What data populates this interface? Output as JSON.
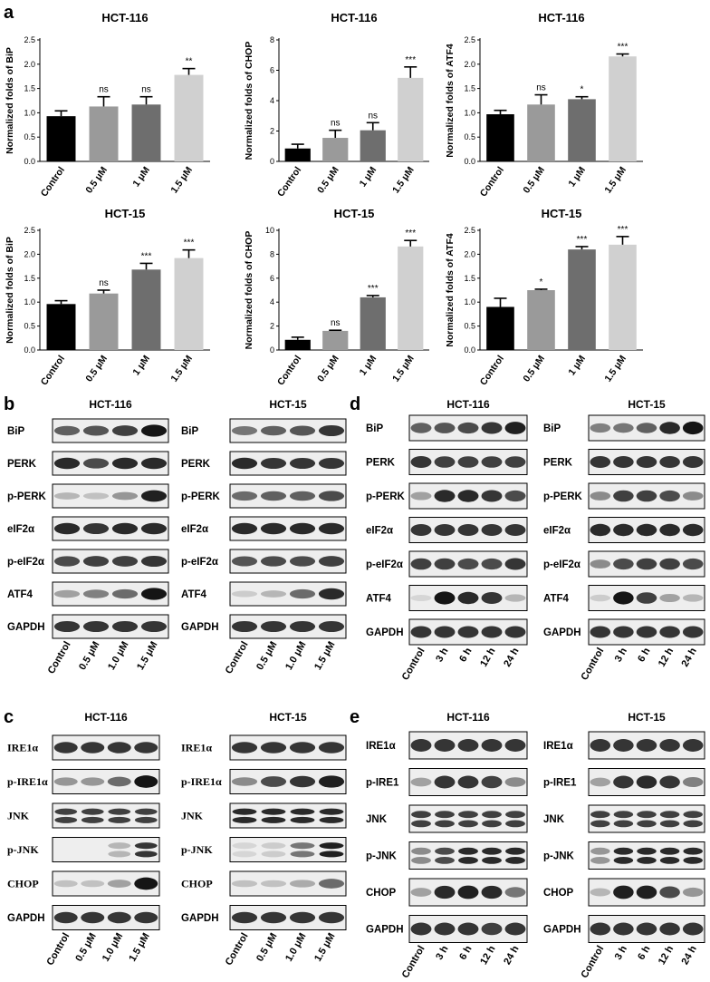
{
  "panel_labels": {
    "a": "a",
    "b": "b",
    "c": "c",
    "d": "d",
    "e": "e"
  },
  "bar_colors": [
    "#000000",
    "#9a9a9a",
    "#6e6e6e",
    "#d0d0d0"
  ],
  "chart_data": [
    {
      "type": "bar",
      "title": "HCT-116",
      "ylabel": "Normalized folds of BiP",
      "categories": [
        "Control",
        "0.5 μM",
        "1 μM",
        "1.5 μM"
      ],
      "values": [
        0.93,
        1.13,
        1.17,
        1.78
      ],
      "errors": [
        0.11,
        0.2,
        0.16,
        0.13
      ],
      "significance": [
        "",
        "ns",
        "ns",
        "**"
      ],
      "ylim": [
        0,
        2.5
      ],
      "yticks": [
        "0.0",
        "0.5",
        "1.0",
        "1.5",
        "2.0",
        "2.5"
      ]
    },
    {
      "type": "bar",
      "title": "HCT-116",
      "ylabel": "Normalized folds of CHOP",
      "categories": [
        "Control",
        "0.5 μM",
        "1 μM",
        "1.5 μM"
      ],
      "values": [
        0.85,
        1.55,
        2.05,
        5.5
      ],
      "errors": [
        0.28,
        0.5,
        0.5,
        0.72
      ],
      "significance": [
        "",
        "ns",
        "ns",
        "***"
      ],
      "ylim": [
        0,
        8
      ],
      "yticks": [
        "0",
        "2",
        "4",
        "6",
        "8"
      ]
    },
    {
      "type": "bar",
      "title": "HCT-116",
      "ylabel": "Normalized folds of ATF4",
      "categories": [
        "Control",
        "0.5 μM",
        "1 μM",
        "1.5 μM"
      ],
      "values": [
        0.97,
        1.17,
        1.28,
        2.16
      ],
      "errors": [
        0.08,
        0.2,
        0.05,
        0.05
      ],
      "significance": [
        "",
        "ns",
        "*",
        "***"
      ],
      "ylim": [
        0,
        2.5
      ],
      "yticks": [
        "0.0",
        "0.5",
        "1.0",
        "1.5",
        "2.0",
        "2.5"
      ]
    },
    {
      "type": "bar",
      "title": "HCT-15",
      "ylabel": "Normalized folds of BiP",
      "categories": [
        "Control",
        "0.5 μM",
        "1 μM",
        "1.5 μM"
      ],
      "values": [
        0.96,
        1.18,
        1.68,
        1.92
      ],
      "errors": [
        0.07,
        0.07,
        0.13,
        0.17
      ],
      "significance": [
        "",
        "ns",
        "***",
        "***"
      ],
      "ylim": [
        0,
        2.5
      ],
      "yticks": [
        "0.0",
        "0.5",
        "1.0",
        "1.5",
        "2.0",
        "2.5"
      ]
    },
    {
      "type": "bar",
      "title": "HCT-15",
      "ylabel": "Normalized folds of CHOP",
      "categories": [
        "Control",
        "0.5 μM",
        "1 μM",
        "1.5 μM"
      ],
      "values": [
        0.85,
        1.6,
        4.4,
        8.65
      ],
      "errors": [
        0.22,
        0.05,
        0.15,
        0.5
      ],
      "significance": [
        "",
        "ns",
        "***",
        "***"
      ],
      "ylim": [
        0,
        10
      ],
      "yticks": [
        "0",
        "2",
        "4",
        "6",
        "8",
        "10"
      ]
    },
    {
      "type": "bar",
      "title": "HCT-15",
      "ylabel": "Normalized folds of ATF4",
      "categories": [
        "Control",
        "0.5 μM",
        "1 μM",
        "1.5 μM"
      ],
      "values": [
        0.9,
        1.25,
        2.1,
        2.2
      ],
      "errors": [
        0.18,
        0.02,
        0.06,
        0.17
      ],
      "significance": [
        "",
        "*",
        "***",
        "***"
      ],
      "ylim": [
        0,
        2.5
      ],
      "yticks": [
        "0.0",
        "0.5",
        "1.0",
        "1.5",
        "2.0",
        "2.5"
      ]
    }
  ],
  "blots": [
    {
      "panel": "b",
      "title": "HCT-116",
      "rows": [
        "BiP",
        "PERK",
        "p-PERK",
        "eIF2α",
        "p-eIF2α",
        "ATF4",
        "GAPDH"
      ],
      "lanes": [
        "Control",
        "0.5 μM",
        "1.0 μM",
        "1.5 μM"
      ],
      "intensity": [
        [
          0.6,
          0.65,
          0.75,
          0.95
        ],
        [
          0.85,
          0.7,
          0.85,
          0.85
        ],
        [
          0.2,
          0.15,
          0.35,
          0.9
        ],
        [
          0.85,
          0.8,
          0.85,
          0.85
        ],
        [
          0.7,
          0.75,
          0.75,
          0.8
        ],
        [
          0.3,
          0.45,
          0.55,
          0.95
        ],
        [
          0.8,
          0.8,
          0.8,
          0.8
        ]
      ]
    },
    {
      "panel": "b",
      "title": "HCT-15",
      "rows": [
        "BiP",
        "PERK",
        "p-PERK",
        "eIF2α",
        "p-eIF2α",
        "ATF4",
        "GAPDH"
      ],
      "lanes": [
        "Control",
        "0.5 μM",
        "1.0 μM",
        "1.5 μM"
      ],
      "intensity": [
        [
          0.5,
          0.6,
          0.65,
          0.8
        ],
        [
          0.85,
          0.8,
          0.8,
          0.8
        ],
        [
          0.55,
          0.6,
          0.6,
          0.7
        ],
        [
          0.85,
          0.85,
          0.85,
          0.85
        ],
        [
          0.65,
          0.7,
          0.7,
          0.75
        ],
        [
          0.1,
          0.2,
          0.55,
          0.85
        ],
        [
          0.8,
          0.8,
          0.8,
          0.8
        ]
      ]
    },
    {
      "panel": "c",
      "title": "HCT-116",
      "rows": [
        "IRE1α",
        "p-IRE1α",
        "JNK",
        "p-JNK",
        "CHOP",
        "GAPDH"
      ],
      "lanes": [
        "Control",
        "0.5 μM",
        "1.0 μM",
        "1.5 μM"
      ],
      "intensity": [
        [
          0.8,
          0.8,
          0.8,
          0.8
        ],
        [
          0.35,
          0.35,
          0.55,
          0.95
        ],
        [
          0.75,
          0.75,
          0.75,
          0.75
        ],
        [
          0.0,
          0.0,
          0.2,
          0.8
        ],
        [
          0.15,
          0.15,
          0.3,
          0.95
        ],
        [
          0.8,
          0.8,
          0.8,
          0.8
        ]
      ]
    },
    {
      "panel": "c",
      "title": "HCT-15",
      "rows": [
        "IRE1α",
        "p-IRE1α",
        "JNK",
        "p-JNK",
        "CHOP",
        "GAPDH"
      ],
      "lanes": [
        "Control",
        "0.5 μM",
        "1.0 μM",
        "1.5 μM"
      ],
      "intensity": [
        [
          0.8,
          0.8,
          0.8,
          0.8
        ],
        [
          0.4,
          0.7,
          0.8,
          0.9
        ],
        [
          0.85,
          0.85,
          0.85,
          0.85
        ],
        [
          0.05,
          0.1,
          0.5,
          0.9
        ],
        [
          0.15,
          0.15,
          0.25,
          0.55
        ],
        [
          0.8,
          0.8,
          0.8,
          0.8
        ]
      ]
    },
    {
      "panel": "d",
      "title": "HCT-116",
      "rows": [
        "BiP",
        "PERK",
        "p-PERK",
        "eIF2α",
        "p-eIF2α",
        "ATF4",
        "GAPDH"
      ],
      "lanes": [
        "Control",
        "3 h",
        "6 h",
        "12 h",
        "24 h"
      ],
      "intensity": [
        [
          0.6,
          0.65,
          0.7,
          0.8,
          0.9
        ],
        [
          0.8,
          0.75,
          0.75,
          0.75,
          0.75
        ],
        [
          0.3,
          0.85,
          0.85,
          0.8,
          0.7
        ],
        [
          0.8,
          0.8,
          0.8,
          0.8,
          0.8
        ],
        [
          0.75,
          0.75,
          0.7,
          0.7,
          0.8
        ],
        [
          0.05,
          0.95,
          0.85,
          0.8,
          0.2
        ],
        [
          0.8,
          0.8,
          0.8,
          0.8,
          0.8
        ]
      ]
    },
    {
      "panel": "d",
      "title": "HCT-15",
      "rows": [
        "BiP",
        "PERK",
        "p-PERK",
        "eIF2α",
        "p-eIF2α",
        "ATF4",
        "GAPDH"
      ],
      "lanes": [
        "Control",
        "3 h",
        "6 h",
        "12 h",
        "24 h"
      ],
      "intensity": [
        [
          0.45,
          0.5,
          0.6,
          0.85,
          0.95
        ],
        [
          0.8,
          0.8,
          0.8,
          0.8,
          0.8
        ],
        [
          0.4,
          0.75,
          0.75,
          0.7,
          0.4
        ],
        [
          0.85,
          0.85,
          0.85,
          0.85,
          0.85
        ],
        [
          0.4,
          0.7,
          0.75,
          0.75,
          0.7
        ],
        [
          0.1,
          0.95,
          0.75,
          0.3,
          0.2
        ],
        [
          0.8,
          0.8,
          0.8,
          0.8,
          0.8
        ]
      ]
    },
    {
      "panel": "e",
      "title": "HCT-116",
      "rows": [
        "IRE1α",
        "p-IRE1",
        "JNK",
        "p-JNK",
        "CHOP",
        "GAPDH"
      ],
      "lanes": [
        "Control",
        "3 h",
        "6 h",
        "12 h",
        "24 h"
      ],
      "intensity": [
        [
          0.8,
          0.8,
          0.8,
          0.8,
          0.8
        ],
        [
          0.3,
          0.8,
          0.8,
          0.75,
          0.4
        ],
        [
          0.75,
          0.75,
          0.75,
          0.75,
          0.75
        ],
        [
          0.4,
          0.7,
          0.85,
          0.85,
          0.85
        ],
        [
          0.3,
          0.85,
          0.9,
          0.85,
          0.5
        ],
        [
          0.8,
          0.8,
          0.8,
          0.75,
          0.8
        ]
      ]
    },
    {
      "panel": "e",
      "title": "HCT-15",
      "rows": [
        "IRE1α",
        "p-IRE1",
        "JNK",
        "p-JNK",
        "CHOP",
        "GAPDH"
      ],
      "lanes": [
        "Control",
        "3 h",
        "6 h",
        "12 h",
        "24 h"
      ],
      "intensity": [
        [
          0.8,
          0.8,
          0.8,
          0.8,
          0.8
        ],
        [
          0.3,
          0.8,
          0.85,
          0.8,
          0.45
        ],
        [
          0.75,
          0.75,
          0.75,
          0.75,
          0.75
        ],
        [
          0.35,
          0.85,
          0.85,
          0.85,
          0.85
        ],
        [
          0.2,
          0.9,
          0.9,
          0.7,
          0.35
        ],
        [
          0.8,
          0.8,
          0.8,
          0.8,
          0.8
        ]
      ]
    }
  ]
}
